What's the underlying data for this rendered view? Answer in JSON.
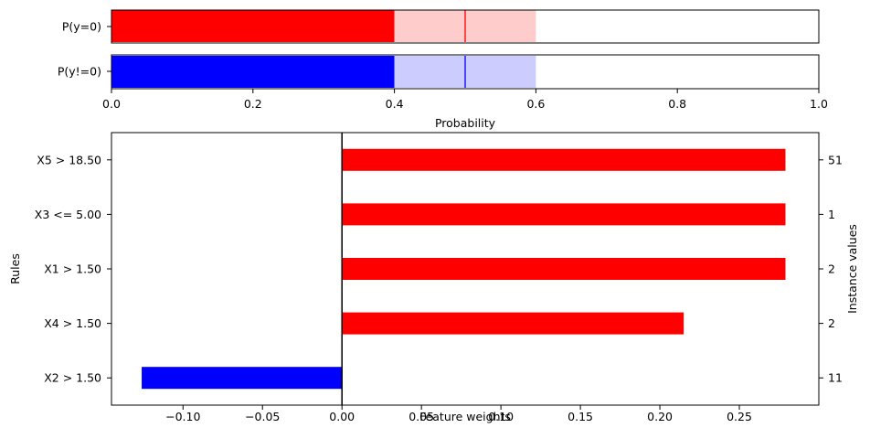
{
  "chart_data": [
    {
      "type": "bar",
      "orientation": "horizontal",
      "xlabel": "Probability",
      "xlim": [
        0,
        1
      ],
      "xticks": [
        "0.0",
        "0.2",
        "0.4",
        "0.6",
        "0.8",
        "1.0"
      ],
      "grid": false,
      "rows": [
        {
          "label": "P(y=0)",
          "value": 0.4,
          "interval": [
            0.4,
            0.6
          ],
          "median": 0.5,
          "color": "#ff0000",
          "band_color": "#ffcccc"
        },
        {
          "label": "P(y!=0)",
          "value": 0.4,
          "interval": [
            0.4,
            0.6
          ],
          "median": 0.5,
          "color": "#0000ff",
          "band_color": "#ccccff"
        }
      ]
    },
    {
      "type": "bar",
      "orientation": "horizontal",
      "xlabel": "Feature weights",
      "ylabel": "Rules",
      "y2label": "Instance values",
      "xlim": [
        -0.145,
        0.3
      ],
      "xticks": [
        "−0.10",
        "−0.05",
        "0.00",
        "0.05",
        "0.10",
        "0.15",
        "0.20",
        "0.25"
      ],
      "xtick_values": [
        -0.1,
        -0.05,
        0.0,
        0.05,
        0.1,
        0.15,
        0.2,
        0.25
      ],
      "grid": false,
      "positive_color": "#ff0000",
      "negative_color": "#0000ff",
      "categories": [
        "X5 > 18.50",
        "X3 <= 5.00",
        "X1 > 1.50",
        "X4 > 1.50",
        "X2 > 1.50"
      ],
      "values": [
        0.279,
        0.279,
        0.279,
        0.215,
        -0.126
      ],
      "instance_values": [
        "51",
        "1",
        "2",
        "2",
        "11"
      ]
    }
  ]
}
